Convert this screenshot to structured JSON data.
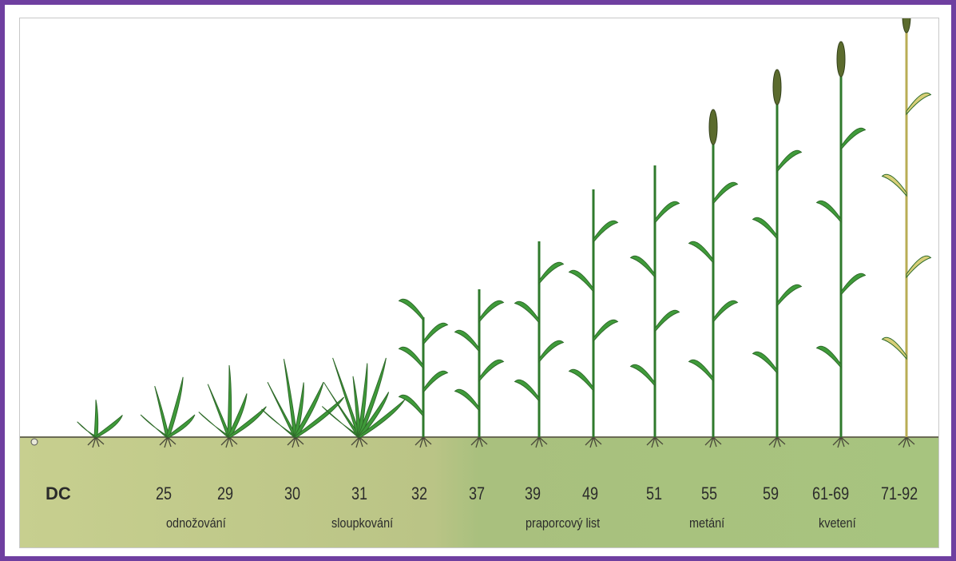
{
  "scale_label": "DC",
  "stages": [
    "25",
    "29",
    "30",
    "31",
    "32",
    "37",
    "39",
    "49",
    "51",
    "55",
    "59",
    "61-69",
    "71-92"
  ],
  "phases": [
    "odnožování",
    "sloupkování",
    "praporcový list",
    "metání",
    "kvetení"
  ],
  "colors": {
    "frame": "#6f3fa0",
    "soil": "#bcc98a",
    "leaf": "#3f9b3a",
    "ripe_plant": "#d8cf78",
    "ear": "#5b6b2d"
  }
}
